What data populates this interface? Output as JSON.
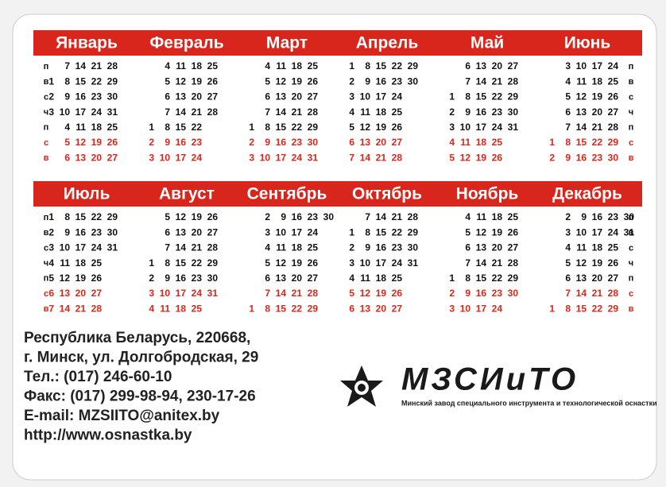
{
  "calendar": {
    "weekdays": [
      "п",
      "в",
      "с",
      "ч",
      "п",
      "с",
      "в"
    ],
    "halves": [
      {
        "months": [
          {
            "name": "Январь",
            "rows": [
              [
                null,
                7,
                14,
                21,
                28
              ],
              [
                1,
                8,
                15,
                22,
                29
              ],
              [
                2,
                9,
                16,
                23,
                30
              ],
              [
                3,
                10,
                17,
                24,
                31
              ],
              [
                null,
                4,
                11,
                18,
                25
              ],
              [
                null,
                5,
                12,
                19,
                26
              ],
              [
                null,
                6,
                13,
                20,
                27
              ]
            ]
          },
          {
            "name": "Февраль",
            "rows": [
              [
                null,
                4,
                11,
                18,
                25
              ],
              [
                null,
                5,
                12,
                19,
                26
              ],
              [
                null,
                6,
                13,
                20,
                27
              ],
              [
                null,
                7,
                14,
                21,
                28
              ],
              [
                1,
                8,
                15,
                22
              ],
              [
                2,
                9,
                16,
                23
              ],
              [
                3,
                10,
                17,
                24
              ]
            ]
          },
          {
            "name": "Март",
            "rows": [
              [
                null,
                4,
                11,
                18,
                25
              ],
              [
                null,
                5,
                12,
                19,
                26
              ],
              [
                null,
                6,
                13,
                20,
                27
              ],
              [
                null,
                7,
                14,
                21,
                28
              ],
              [
                1,
                8,
                15,
                22,
                29
              ],
              [
                2,
                9,
                16,
                23,
                30
              ],
              [
                3,
                10,
                17,
                24,
                31
              ]
            ]
          },
          {
            "name": "Апрель",
            "rows": [
              [
                1,
                8,
                15,
                22,
                29
              ],
              [
                2,
                9,
                16,
                23,
                30
              ],
              [
                3,
                10,
                17,
                24
              ],
              [
                4,
                11,
                18,
                25
              ],
              [
                5,
                12,
                19,
                26
              ],
              [
                6,
                13,
                20,
                27
              ],
              [
                7,
                14,
                21,
                28
              ]
            ]
          },
          {
            "name": "Май",
            "rows": [
              [
                null,
                6,
                13,
                20,
                27
              ],
              [
                null,
                7,
                14,
                21,
                28
              ],
              [
                1,
                8,
                15,
                22,
                29
              ],
              [
                2,
                9,
                16,
                23,
                30
              ],
              [
                3,
                10,
                17,
                24,
                31
              ],
              [
                4,
                11,
                18,
                25
              ],
              [
                5,
                12,
                19,
                26
              ]
            ]
          },
          {
            "name": "Июнь",
            "rows": [
              [
                null,
                3,
                10,
                17,
                24
              ],
              [
                null,
                4,
                11,
                18,
                25
              ],
              [
                null,
                5,
                12,
                19,
                26
              ],
              [
                null,
                6,
                13,
                20,
                27
              ],
              [
                null,
                7,
                14,
                21,
                28
              ],
              [
                1,
                8,
                15,
                22,
                29
              ],
              [
                2,
                9,
                16,
                23,
                30
              ]
            ]
          }
        ]
      },
      {
        "months": [
          {
            "name": "Июль",
            "rows": [
              [
                1,
                8,
                15,
                22,
                29
              ],
              [
                2,
                9,
                16,
                23,
                30
              ],
              [
                3,
                10,
                17,
                24,
                31
              ],
              [
                4,
                11,
                18,
                25
              ],
              [
                5,
                12,
                19,
                26
              ],
              [
                6,
                13,
                20,
                27
              ],
              [
                7,
                14,
                21,
                28
              ]
            ]
          },
          {
            "name": "Август",
            "rows": [
              [
                null,
                5,
                12,
                19,
                26
              ],
              [
                null,
                6,
                13,
                20,
                27
              ],
              [
                null,
                7,
                14,
                21,
                28
              ],
              [
                1,
                8,
                15,
                22,
                29
              ],
              [
                2,
                9,
                16,
                23,
                30
              ],
              [
                3,
                10,
                17,
                24,
                31
              ],
              [
                4,
                11,
                18,
                25
              ]
            ]
          },
          {
            "name": "Сентябрь",
            "rows": [
              [
                null,
                2,
                9,
                16,
                23,
                30
              ],
              [
                null,
                3,
                10,
                17,
                24
              ],
              [
                null,
                4,
                11,
                18,
                25
              ],
              [
                null,
                5,
                12,
                19,
                26
              ],
              [
                null,
                6,
                13,
                20,
                27
              ],
              [
                null,
                7,
                14,
                21,
                28
              ],
              [
                1,
                8,
                15,
                22,
                29
              ]
            ]
          },
          {
            "name": "Октябрь",
            "rows": [
              [
                null,
                7,
                14,
                21,
                28
              ],
              [
                1,
                8,
                15,
                22,
                29
              ],
              [
                2,
                9,
                16,
                23,
                30
              ],
              [
                3,
                10,
                17,
                24,
                31
              ],
              [
                4,
                11,
                18,
                25
              ],
              [
                5,
                12,
                19,
                26
              ],
              [
                6,
                13,
                20,
                27
              ]
            ]
          },
          {
            "name": "Ноябрь",
            "rows": [
              [
                null,
                4,
                11,
                18,
                25
              ],
              [
                null,
                5,
                12,
                19,
                26
              ],
              [
                null,
                6,
                13,
                20,
                27
              ],
              [
                null,
                7,
                14,
                21,
                28
              ],
              [
                1,
                8,
                15,
                22,
                29
              ],
              [
                2,
                9,
                16,
                23,
                30
              ],
              [
                3,
                10,
                17,
                24
              ]
            ]
          },
          {
            "name": "Декабрь",
            "rows": [
              [
                null,
                2,
                9,
                16,
                23,
                30
              ],
              [
                null,
                3,
                10,
                17,
                24,
                31
              ],
              [
                null,
                4,
                11,
                18,
                25
              ],
              [
                null,
                5,
                12,
                19,
                26
              ],
              [
                null,
                6,
                13,
                20,
                27
              ],
              [
                null,
                7,
                14,
                21,
                28
              ],
              [
                1,
                8,
                15,
                22,
                29
              ]
            ]
          }
        ]
      }
    ]
  },
  "contact": {
    "lines": [
      "Республика Беларусь, 220668,",
      "г. Минск, ул. Долгобродская, 29",
      "Тел.: (017) 246-60-10",
      "Факс: (017) 299-98-94, 230-17-26",
      "E-mail: MZSIITO@anitex.by",
      "http://www.osnastka.by"
    ]
  },
  "logo": {
    "name": "МЗСИиТО",
    "subtitle": "Минский завод специального инструмента и технологической оснастки"
  }
}
